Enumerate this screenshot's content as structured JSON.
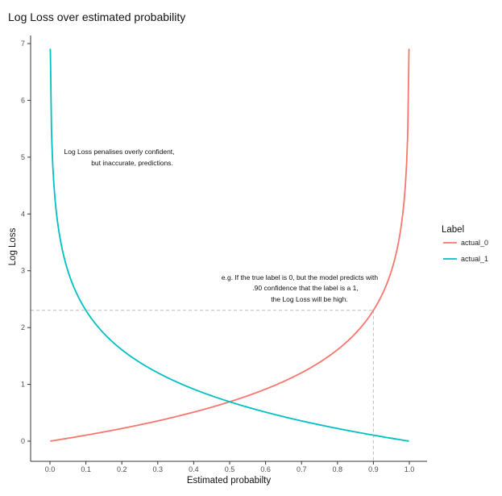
{
  "chart_data": {
    "type": "line",
    "title": "Log Loss over estimated probability",
    "xlabel": "Estimated probabilty",
    "ylabel": "Log Loss",
    "xlim": [
      0,
      1
    ],
    "ylim": [
      0,
      7
    ],
    "x_ticks": [
      "0.0",
      "0.1",
      "0.2",
      "0.3",
      "0.4",
      "0.5",
      "0.6",
      "0.7",
      "0.8",
      "0.9",
      "1.0"
    ],
    "y_ticks": [
      "0",
      "1",
      "2",
      "3",
      "4",
      "5",
      "6",
      "7"
    ],
    "grid": false,
    "legend": {
      "title": "Label",
      "placement": "right",
      "entries": [
        "actual_0",
        "actual_1"
      ]
    },
    "series": [
      {
        "name": "actual_0",
        "color": "#F8766D",
        "x": [
          0.0,
          0.1,
          0.2,
          0.3,
          0.4,
          0.5,
          0.6,
          0.7,
          0.8,
          0.9,
          0.95,
          0.99,
          0.999
        ],
        "y": [
          0.0,
          0.105,
          0.223,
          0.357,
          0.511,
          0.693,
          0.916,
          1.204,
          1.609,
          2.303,
          2.996,
          4.605,
          6.908
        ]
      },
      {
        "name": "actual_1",
        "color": "#00BFC4",
        "x": [
          0.001,
          0.01,
          0.05,
          0.1,
          0.2,
          0.3,
          0.4,
          0.5,
          0.6,
          0.7,
          0.8,
          0.9,
          1.0
        ],
        "y": [
          6.908,
          4.605,
          2.996,
          2.303,
          1.609,
          1.204,
          0.916,
          0.693,
          0.511,
          0.357,
          0.223,
          0.105,
          0.0
        ]
      }
    ],
    "reference_lines": {
      "vertical_x": 0.9,
      "horizontal_y": 2.303
    },
    "annotations": [
      {
        "lines": [
          "Log Loss penalises overly confident,",
          "but inaccurate, predictions."
        ]
      },
      {
        "lines": [
          "e.g. If the true label is 0, but the model predicts with",
          ".90 confidence that the label is a 1,",
          "the Log Loss will be high."
        ]
      }
    ]
  }
}
